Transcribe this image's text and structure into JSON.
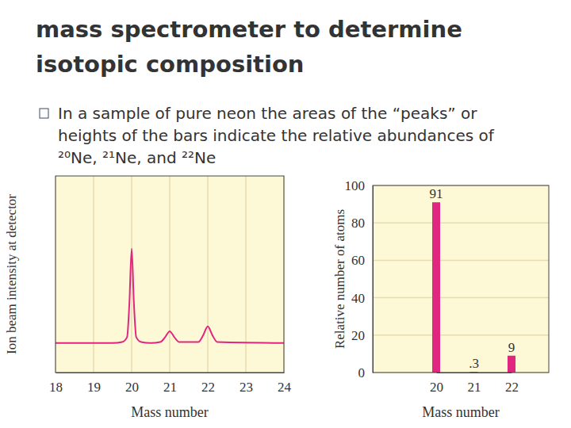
{
  "slide": {
    "title": "mass spectrometer to determine isotopic composition",
    "bullets": [
      "In a sample of pure neon the areas of the “peaks” or heights of the bars indicate the relative abundances of ²⁰Ne, ²¹Ne, and ²²Ne"
    ]
  },
  "chart_data": [
    {
      "type": "line",
      "x": [
        18,
        19.5,
        19.75,
        19.88,
        19.94,
        20,
        20.06,
        20.12,
        20.25,
        20.5,
        20.75,
        20.88,
        21,
        21.12,
        21.25,
        21.75,
        21.88,
        22,
        22.12,
        22.25,
        24
      ],
      "values": [
        15,
        15,
        15.5,
        18,
        35,
        63,
        35,
        18,
        15.5,
        15,
        15.5,
        18,
        21,
        18,
        15.5,
        15.5,
        19,
        23.5,
        19,
        15.5,
        15
      ],
      "color": "#e0267f",
      "xlim": [
        18,
        24
      ],
      "xticks": [
        18,
        19,
        20,
        21,
        22,
        23,
        24
      ],
      "ylim": [
        0,
        100
      ],
      "tick_labels": "x",
      "grid": true,
      "xlabel": "Mass number",
      "ylabel": "Ion beam intensity at detector"
    },
    {
      "type": "bar",
      "categories": [
        "20",
        "21",
        "22"
      ],
      "values": [
        91,
        0.3,
        9
      ],
      "value_labels": [
        "91",
        ".3",
        "9"
      ],
      "data_labels": true,
      "color": "#e0267f",
      "ylim": [
        0,
        100
      ],
      "yticks": [
        0,
        20,
        40,
        60,
        80,
        100
      ],
      "grid": true,
      "xlabel": "Mass number",
      "ylabel": "Relative number of atoms"
    }
  ]
}
